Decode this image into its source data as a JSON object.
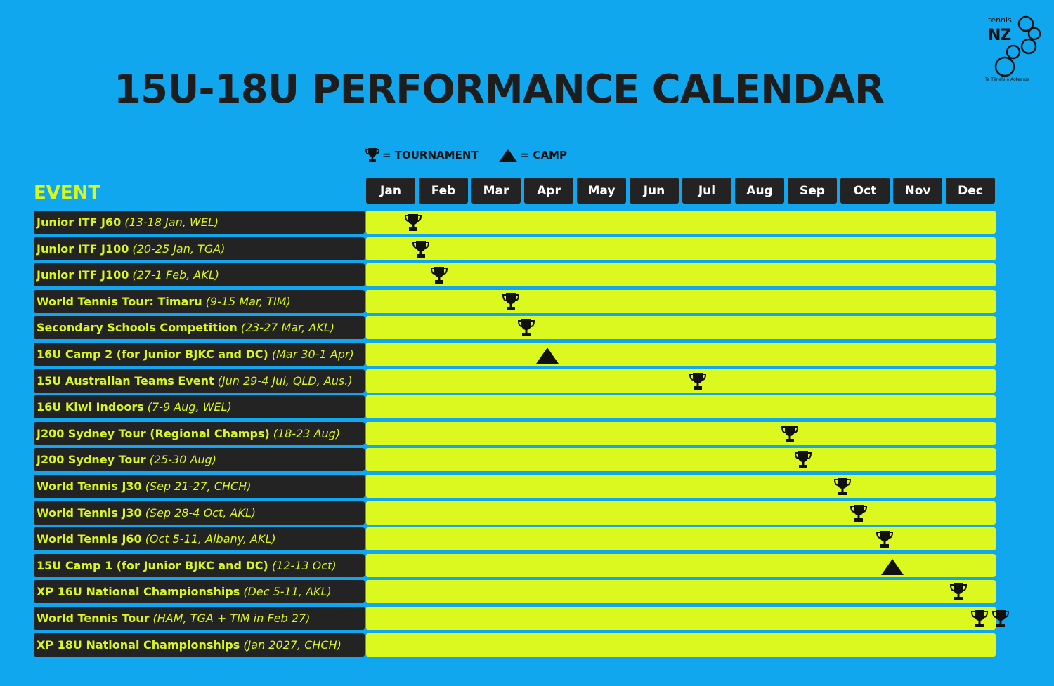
{
  "title": "15U-18U PERFORMANCE CALENDAR",
  "logo": {
    "top_text": "tennis",
    "main_text": "NZ",
    "sub_text": "Te Tēnehi o Aotearoa"
  },
  "legend": {
    "tournament_label": "= TOURNAMENT",
    "tournament_icon": "trophy-icon",
    "camp_label": "= CAMP",
    "camp_icon": "triangle-icon"
  },
  "colors": {
    "background": "#11a7ee",
    "accent": "#d9f71e",
    "dark": "#232323",
    "bar": "#dcf91f"
  },
  "event_header": "EVENT",
  "months": [
    "Jan",
    "Feb",
    "Mar",
    "Apr",
    "May",
    "Jun",
    "Jul",
    "Aug",
    "Sep",
    "Oct",
    "Nov",
    "Dec"
  ],
  "events": [
    {
      "name": "Junior ITF J60",
      "detail": "(13-18 Jan, WEL)",
      "markers": [
        {
          "type": "tournament",
          "month_pos": 0.45
        }
      ]
    },
    {
      "name": "Junior ITF J100",
      "detail": "(20-25 Jan, TGA)",
      "markers": [
        {
          "type": "tournament",
          "month_pos": 0.6
        }
      ]
    },
    {
      "name": "Junior ITF J100",
      "detail": "(27-1 Feb, AKL)",
      "markers": [
        {
          "type": "tournament",
          "month_pos": 0.95
        }
      ]
    },
    {
      "name": "World Tennis Tour: Timaru",
      "detail": "(9-15 Mar, TIM)",
      "markers": [
        {
          "type": "tournament",
          "month_pos": 2.3
        }
      ]
    },
    {
      "name": "Secondary Schools Competition",
      "detail": "(23-27 Mar, AKL)",
      "markers": [
        {
          "type": "tournament",
          "month_pos": 2.6
        }
      ]
    },
    {
      "name": "16U Camp 2 (for Junior BJKC and DC)",
      "detail": "(Mar 30-1 Apr)",
      "markers": [
        {
          "type": "camp",
          "month_pos": 3.0
        }
      ]
    },
    {
      "name": "15U Australian Teams Event",
      "detail": "(Jun 29-4 Jul, QLD, Aus.)",
      "markers": [
        {
          "type": "tournament",
          "month_pos": 5.85
        }
      ]
    },
    {
      "name": "16U Kiwi Indoors",
      "detail": "(7-9 Aug, WEL)",
      "markers": []
    },
    {
      "name": "J200 Sydney Tour (Regional Champs)",
      "detail": "(18-23 Aug)",
      "markers": [
        {
          "type": "tournament",
          "month_pos": 7.6
        }
      ]
    },
    {
      "name": "J200 Sydney Tour",
      "detail": "(25-30 Aug)",
      "markers": [
        {
          "type": "tournament",
          "month_pos": 7.85
        }
      ]
    },
    {
      "name": "World Tennis J30",
      "detail": "(Sep 21-27, CHCH)",
      "markers": [
        {
          "type": "tournament",
          "month_pos": 8.6
        }
      ]
    },
    {
      "name": "World Tennis J30",
      "detail": "(Sep 28-4 Oct, AKL)",
      "markers": [
        {
          "type": "tournament",
          "month_pos": 8.9
        }
      ]
    },
    {
      "name": "World Tennis J60",
      "detail": "(Oct 5-11, Albany, AKL)",
      "markers": [
        {
          "type": "tournament",
          "month_pos": 9.4
        }
      ]
    },
    {
      "name": "15U Camp 1 (for Junior BJKC and DC)",
      "detail": "(12-13 Oct)",
      "markers": [
        {
          "type": "camp",
          "month_pos": 9.55
        }
      ]
    },
    {
      "name": "XP 16U National Championships",
      "detail": "(Dec 5-11, AKL)",
      "markers": [
        {
          "type": "tournament",
          "month_pos": 10.8
        }
      ]
    },
    {
      "name": "World Tennis Tour",
      "detail": "(HAM, TGA + TIM in Feb 27)",
      "markers": [
        {
          "type": "tournament",
          "month_pos": 11.2
        },
        {
          "type": "tournament",
          "month_pos": 11.6
        }
      ]
    },
    {
      "name": "XP 18U National Championships",
      "detail": "(Jan 2027, CHCH)",
      "markers": []
    }
  ]
}
